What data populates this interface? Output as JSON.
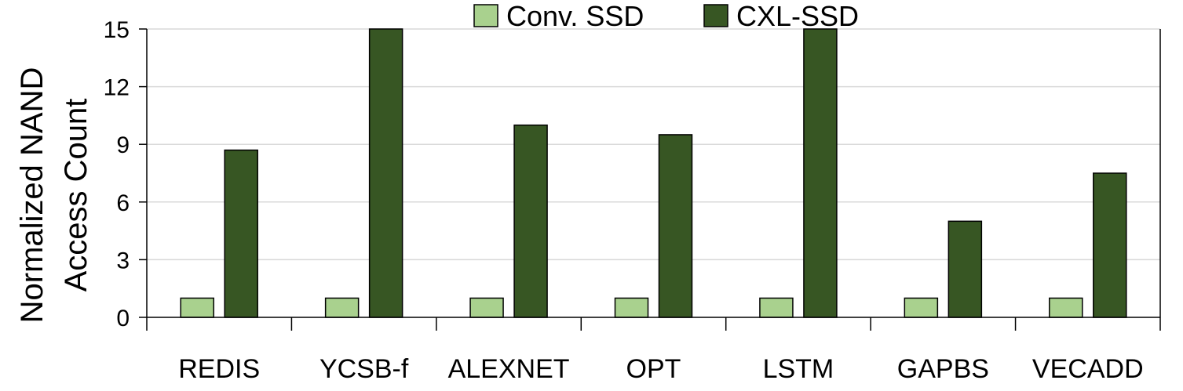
{
  "chart_data": {
    "type": "bar",
    "title": "",
    "xlabel": "",
    "ylabel_lines": [
      "Normalized NAND",
      "Access Count"
    ],
    "categories": [
      "REDIS",
      "YCSB-f",
      "ALEXNET",
      "OPT",
      "LSTM",
      "GAPBS",
      "VECADD"
    ],
    "series": [
      {
        "name": "Conv. SSD",
        "color": "#a9d18e",
        "values": [
          1,
          1,
          1,
          1,
          1,
          1,
          1
        ]
      },
      {
        "name": "CXL-SSD",
        "color": "#375623",
        "values": [
          8.7,
          15,
          10,
          9.5,
          15,
          5,
          7.5
        ]
      }
    ],
    "ylim": [
      0,
      15
    ],
    "yticks": [
      0,
      3,
      6,
      9,
      12,
      15
    ],
    "grid": true,
    "legend_position": "top-center"
  }
}
